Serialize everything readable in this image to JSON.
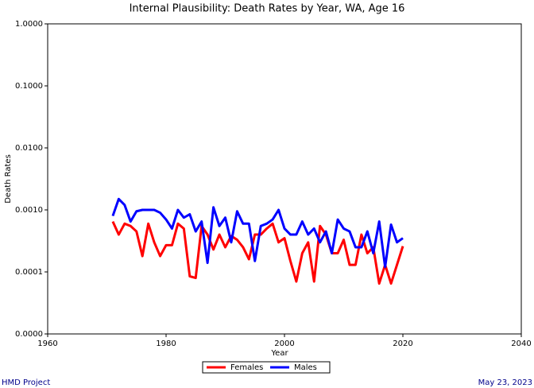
{
  "chart_data": {
    "type": "line",
    "title": "Internal Plausibility: Death Rates by Year, WA, Age 16",
    "x_label": "Year",
    "y_label": "Death Rates",
    "log_y": true,
    "legend": "bottom",
    "x": [
      1971,
      1972,
      1973,
      1974,
      1975,
      1976,
      1977,
      1978,
      1979,
      1980,
      1981,
      1982,
      1983,
      1984,
      1985,
      1986,
      1987,
      1988,
      1989,
      1990,
      1991,
      1992,
      1993,
      1994,
      1995,
      1996,
      1997,
      1998,
      1999,
      2000,
      2001,
      2002,
      2003,
      2004,
      2005,
      2006,
      2007,
      2008,
      2009,
      2010,
      2011,
      2012,
      2013,
      2014,
      2015,
      2016,
      2017,
      2018,
      2019,
      2020
    ],
    "series": [
      {
        "name": "Females",
        "color": "#ff0000",
        "values": [
          0.00065,
          0.0004,
          0.0006,
          0.00055,
          0.00045,
          0.00018,
          0.0006,
          0.0003,
          0.00018,
          0.00027,
          0.00027,
          0.0006,
          0.0005,
          8.5e-05,
          8e-05,
          0.00055,
          0.0004,
          0.00023,
          0.0004,
          0.00025,
          0.00038,
          0.00033,
          0.00025,
          0.00016,
          0.0004,
          0.0004,
          0.0005,
          0.0006,
          0.0003,
          0.00035,
          0.00015,
          7e-05,
          0.0002,
          0.0003,
          7e-05,
          0.00055,
          0.0004,
          0.0002,
          0.0002,
          0.00033,
          0.00013,
          0.00013,
          0.0004,
          0.0002,
          0.00025,
          6.5e-05,
          0.00013,
          6.5e-05,
          0.00013,
          0.00026
        ]
      },
      {
        "name": "Males",
        "color": "#0000ff",
        "values": [
          0.0008,
          0.0015,
          0.0012,
          0.00065,
          0.00095,
          0.001,
          0.001,
          0.001,
          0.0009,
          0.0007,
          0.0005,
          0.001,
          0.00075,
          0.00085,
          0.00045,
          0.00065,
          0.00014,
          0.0011,
          0.00055,
          0.00075,
          0.0003,
          0.00095,
          0.0006,
          0.0006,
          0.00015,
          0.00055,
          0.0006,
          0.0007,
          0.001,
          0.0005,
          0.0004,
          0.0004,
          0.00065,
          0.0004,
          0.0005,
          0.0003,
          0.00045,
          0.0002,
          0.0007,
          0.0005,
          0.00045,
          0.00025,
          0.00025,
          0.00045,
          0.0002,
          0.00065,
          0.00012,
          0.00058,
          0.0003,
          0.00035
        ]
      }
    ],
    "xlim": [
      1960,
      2040
    ],
    "xticks": [
      1960,
      1980,
      2000,
      2020,
      2040
    ],
    "ylim": [
      1e-05,
      1
    ],
    "yticks": [
      {
        "value": 1e-05,
        "label": "0.0000"
      },
      {
        "value": 0.0001,
        "label": "0.0001"
      },
      {
        "value": 0.001,
        "label": "0.0010"
      },
      {
        "value": 0.01,
        "label": "0.0100"
      },
      {
        "value": 0.1,
        "label": "0.1000"
      },
      {
        "value": 1,
        "label": "1.0000"
      }
    ],
    "footer_left": "HMD Project",
    "footer_right": "May 23, 2023"
  }
}
